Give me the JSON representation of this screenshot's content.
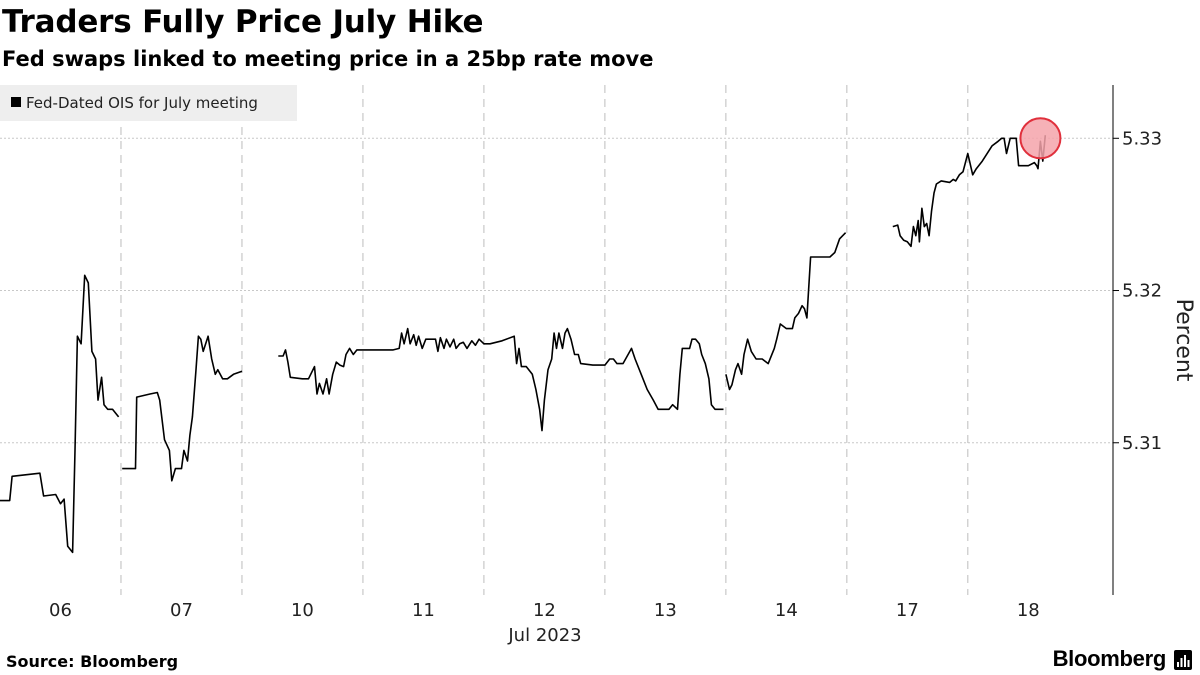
{
  "title": "Traders Fully Price July Hike",
  "subtitle": "Fed swaps linked to meeting price in a 25bp rate move",
  "source": "Source: Bloomberg",
  "brand": "Bloomberg",
  "chart_data": {
    "type": "line",
    "title": "Traders Fully Price July Hike",
    "subtitle": "Fed swaps linked to meeting price in a 25bp rate move",
    "ylabel": "Percent",
    "xlabel": "Jul 2023",
    "ylim": [
      5.3,
      5.3335
    ],
    "yticks": [
      5.31,
      5.32,
      5.33
    ],
    "ytick_labels": [
      "5.31",
      "5.32",
      "5.33"
    ],
    "xlim": [
      0,
      9.2
    ],
    "day_labels": [
      "06",
      "07",
      "10",
      "11",
      "12",
      "13",
      "14",
      "17",
      "18"
    ],
    "day_centers": [
      0.5,
      1.5,
      2.5,
      3.5,
      4.5,
      5.5,
      6.5,
      7.5,
      8.5
    ],
    "day_boundaries": [
      1,
      2,
      3,
      4,
      5,
      6,
      7,
      8
    ],
    "grid": true,
    "legend": {
      "label": "Fed-Dated OIS for July meeting",
      "position": "top-left",
      "color": "#000000"
    },
    "highlight": {
      "x": 8.6,
      "y": 5.33,
      "color": "#f4a3aa"
    },
    "series": [
      {
        "name": "Fed-Dated OIS for July meeting",
        "color": "#000000",
        "segments": [
          [
            [
              0,
              5.3062
            ],
            [
              0.08,
              5.3062
            ],
            [
              0.1,
              5.3078
            ],
            [
              0.33,
              5.308
            ],
            [
              0.36,
              5.3065
            ],
            [
              0.46,
              5.3066
            ],
            [
              0.5,
              5.306
            ],
            [
              0.53,
              5.3063
            ],
            [
              0.56,
              5.3032
            ],
            [
              0.6,
              5.3028
            ],
            [
              0.62,
              5.3095
            ],
            [
              0.64,
              5.317
            ],
            [
              0.67,
              5.3165
            ],
            [
              0.7,
              5.321
            ],
            [
              0.73,
              5.3205
            ],
            [
              0.76,
              5.316
            ],
            [
              0.79,
              5.3155
            ],
            [
              0.81,
              5.3128
            ],
            [
              0.84,
              5.3143
            ],
            [
              0.86,
              5.3125
            ],
            [
              0.89,
              5.3122
            ],
            [
              0.93,
              5.3122
            ],
            [
              0.98,
              5.3117
            ]
          ],
          [
            [
              1.01,
              5.3083
            ],
            [
              1.12,
              5.3083
            ],
            [
              1.13,
              5.313
            ],
            [
              1.24,
              5.3132
            ],
            [
              1.3,
              5.3133
            ],
            [
              1.32,
              5.3128
            ],
            [
              1.36,
              5.3102
            ],
            [
              1.4,
              5.3095
            ],
            [
              1.42,
              5.3075
            ],
            [
              1.45,
              5.3083
            ],
            [
              1.5,
              5.3083
            ],
            [
              1.52,
              5.3095
            ],
            [
              1.55,
              5.3088
            ],
            [
              1.57,
              5.3105
            ],
            [
              1.59,
              5.3117
            ],
            [
              1.62,
              5.3148
            ],
            [
              1.64,
              5.317
            ],
            [
              1.66,
              5.3168
            ],
            [
              1.68,
              5.316
            ],
            [
              1.72,
              5.317
            ],
            [
              1.75,
              5.3155
            ],
            [
              1.78,
              5.3145
            ],
            [
              1.8,
              5.3148
            ],
            [
              1.84,
              5.3142
            ],
            [
              1.88,
              5.3142
            ],
            [
              1.93,
              5.3145
            ],
            [
              2.0,
              5.3147
            ]
          ],
          [
            [
              2.3,
              5.3157
            ],
            [
              2.34,
              5.3157
            ],
            [
              2.36,
              5.3161
            ],
            [
              2.38,
              5.3153
            ],
            [
              2.4,
              5.3143
            ],
            [
              2.5,
              5.3142
            ],
            [
              2.55,
              5.3142
            ],
            [
              2.6,
              5.315
            ],
            [
              2.62,
              5.3132
            ],
            [
              2.64,
              5.3139
            ],
            [
              2.67,
              5.3132
            ],
            [
              2.7,
              5.3142
            ],
            [
              2.72,
              5.3132
            ],
            [
              2.75,
              5.3145
            ],
            [
              2.78,
              5.3153
            ],
            [
              2.81,
              5.3151
            ],
            [
              2.84,
              5.315
            ],
            [
              2.86,
              5.3158
            ],
            [
              2.89,
              5.3162
            ],
            [
              2.92,
              5.3158
            ],
            [
              2.95,
              5.3161
            ],
            [
              3.0,
              5.3161
            ],
            [
              3.1,
              5.3161
            ],
            [
              3.25,
              5.3161
            ],
            [
              3.3,
              5.3162
            ],
            [
              3.32,
              5.3172
            ],
            [
              3.34,
              5.3165
            ],
            [
              3.37,
              5.3175
            ],
            [
              3.39,
              5.3165
            ],
            [
              3.42,
              5.3171
            ],
            [
              3.44,
              5.3164
            ],
            [
              3.46,
              5.317
            ],
            [
              3.49,
              5.3162
            ],
            [
              3.52,
              5.3168
            ],
            [
              3.55,
              5.3168
            ],
            [
              3.6,
              5.3168
            ],
            [
              3.62,
              5.316
            ],
            [
              3.64,
              5.3169
            ],
            [
              3.67,
              5.3162
            ],
            [
              3.69,
              5.3168
            ],
            [
              3.72,
              5.3163
            ],
            [
              3.75,
              5.3168
            ],
            [
              3.77,
              5.3162
            ],
            [
              3.8,
              5.3165
            ],
            [
              3.83,
              5.3166
            ],
            [
              3.86,
              5.3162
            ],
            [
              3.9,
              5.3167
            ],
            [
              3.93,
              5.3164
            ],
            [
              3.96,
              5.3168
            ],
            [
              4.0,
              5.3165
            ],
            [
              4.05,
              5.3165
            ],
            [
              4.15,
              5.3167
            ],
            [
              4.25,
              5.317
            ],
            [
              4.27,
              5.3152
            ],
            [
              4.29,
              5.3162
            ],
            [
              4.31,
              5.315
            ],
            [
              4.35,
              5.315
            ],
            [
              4.4,
              5.3145
            ],
            [
              4.43,
              5.3135
            ],
            [
              4.46,
              5.3122
            ],
            [
              4.48,
              5.3108
            ],
            [
              4.5,
              5.3128
            ],
            [
              4.53,
              5.3148
            ],
            [
              4.56,
              5.3155
            ],
            [
              4.58,
              5.3172
            ],
            [
              4.6,
              5.3162
            ],
            [
              4.62,
              5.3172
            ],
            [
              4.65,
              5.3162
            ],
            [
              4.67,
              5.3172
            ],
            [
              4.69,
              5.3175
            ],
            [
              4.72,
              5.3168
            ],
            [
              4.75,
              5.3158
            ],
            [
              4.78,
              5.3158
            ],
            [
              4.8,
              5.3152
            ],
            [
              4.9,
              5.3151
            ],
            [
              5.0,
              5.3151
            ],
            [
              5.04,
              5.3155
            ],
            [
              5.07,
              5.3155
            ],
            [
              5.1,
              5.3152
            ],
            [
              5.15,
              5.3152
            ],
            [
              5.22,
              5.3162
            ],
            [
              5.25,
              5.3155
            ],
            [
              5.3,
              5.3145
            ],
            [
              5.35,
              5.3135
            ],
            [
              5.4,
              5.3128
            ],
            [
              5.44,
              5.3122
            ],
            [
              5.47,
              5.3122
            ],
            [
              5.5,
              5.3122
            ],
            [
              5.53,
              5.3122
            ],
            [
              5.56,
              5.3125
            ],
            [
              5.6,
              5.3122
            ],
            [
              5.62,
              5.3145
            ],
            [
              5.64,
              5.3162
            ],
            [
              5.67,
              5.3162
            ],
            [
              5.7,
              5.3162
            ],
            [
              5.72,
              5.3168
            ],
            [
              5.75,
              5.3168
            ],
            [
              5.78,
              5.3165
            ],
            [
              5.8,
              5.3158
            ],
            [
              5.83,
              5.3152
            ],
            [
              5.86,
              5.3142
            ],
            [
              5.88,
              5.3125
            ],
            [
              5.91,
              5.3122
            ],
            [
              5.95,
              5.3122
            ],
            [
              5.98,
              5.3122
            ]
          ],
          [
            [
              6.0,
              5.3145
            ],
            [
              6.03,
              5.3135
            ],
            [
              6.05,
              5.3138
            ],
            [
              6.08,
              5.3148
            ],
            [
              6.1,
              5.3152
            ],
            [
              6.13,
              5.3145
            ],
            [
              6.15,
              5.3158
            ],
            [
              6.18,
              5.3168
            ],
            [
              6.21,
              5.316
            ],
            [
              6.25,
              5.3155
            ],
            [
              6.3,
              5.3155
            ],
            [
              6.35,
              5.3152
            ],
            [
              6.4,
              5.3162
            ],
            [
              6.42,
              5.3168
            ],
            [
              6.45,
              5.3178
            ],
            [
              6.5,
              5.3175
            ],
            [
              6.55,
              5.3175
            ],
            [
              6.57,
              5.3182
            ],
            [
              6.6,
              5.3185
            ],
            [
              6.63,
              5.319
            ],
            [
              6.65,
              5.3188
            ],
            [
              6.67,
              5.3182
            ],
            [
              6.68,
              5.3195
            ],
            [
              6.7,
              5.3222
            ],
            [
              6.8,
              5.3222
            ],
            [
              6.86,
              5.3222
            ],
            [
              6.9,
              5.3225
            ],
            [
              6.94,
              5.3234
            ],
            [
              6.99,
              5.3238
            ]
          ],
          [
            [
              7.38,
              5.3242
            ],
            [
              7.42,
              5.3243
            ],
            [
              7.44,
              5.3236
            ],
            [
              7.47,
              5.3233
            ],
            [
              7.5,
              5.3232
            ],
            [
              7.53,
              5.3229
            ],
            [
              7.55,
              5.3242
            ],
            [
              7.57,
              5.3236
            ],
            [
              7.59,
              5.3246
            ],
            [
              7.6,
              5.3232
            ],
            [
              7.62,
              5.3254
            ],
            [
              7.64,
              5.3242
            ],
            [
              7.66,
              5.3244
            ],
            [
              7.68,
              5.3236
            ],
            [
              7.7,
              5.3252
            ],
            [
              7.72,
              5.3264
            ],
            [
              7.74,
              5.327
            ],
            [
              7.78,
              5.3272
            ],
            [
              7.85,
              5.3271
            ],
            [
              7.88,
              5.3273
            ],
            [
              7.9,
              5.3272
            ],
            [
              7.93,
              5.3276
            ],
            [
              7.96,
              5.3278
            ],
            [
              8.0,
              5.329
            ],
            [
              8.04,
              5.3276
            ],
            [
              8.07,
              5.328
            ],
            [
              8.12,
              5.3285
            ],
            [
              8.2,
              5.3295
            ],
            [
              8.25,
              5.3298
            ],
            [
              8.28,
              5.33
            ],
            [
              8.3,
              5.33
            ],
            [
              8.32,
              5.329
            ],
            [
              8.35,
              5.33
            ],
            [
              8.38,
              5.33
            ],
            [
              8.4,
              5.33
            ],
            [
              8.42,
              5.3282
            ],
            [
              8.46,
              5.3282
            ],
            [
              8.5,
              5.3282
            ],
            [
              8.55,
              5.3284
            ],
            [
              8.57,
              5.3282
            ],
            [
              8.58,
              5.328
            ],
            [
              8.6,
              5.3298
            ],
            [
              8.62,
              5.3285
            ],
            [
              8.64,
              5.3302
            ]
          ]
        ]
      }
    ]
  }
}
